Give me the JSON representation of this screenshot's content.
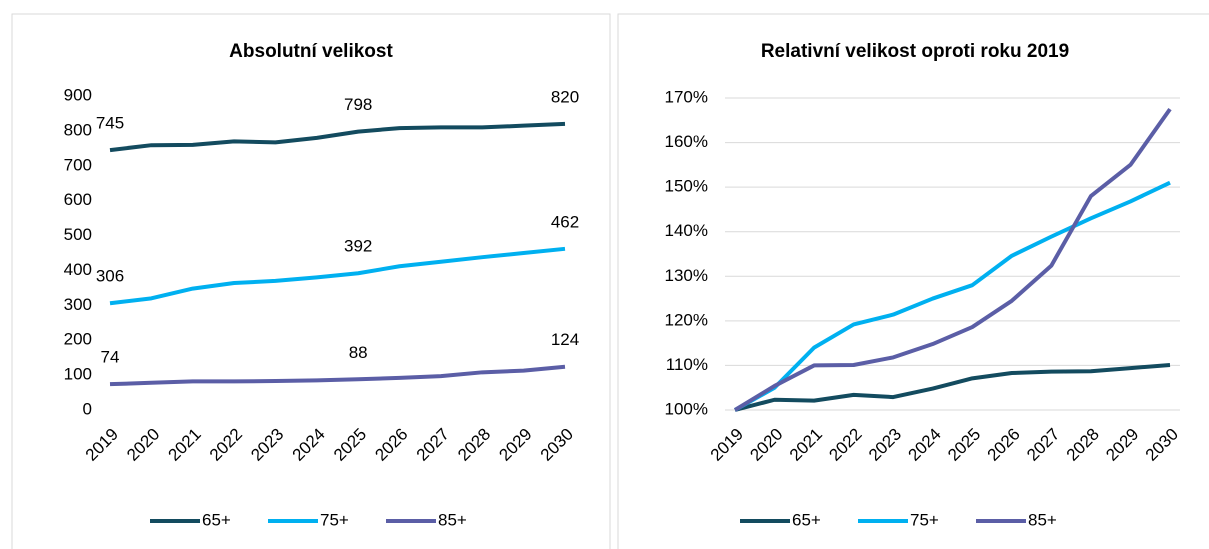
{
  "chart_data": [
    {
      "type": "line",
      "title": "Absolutní velikost",
      "categories": [
        "2019",
        "2020",
        "2021",
        "2022",
        "2023",
        "2024",
        "2025",
        "2026",
        "2027",
        "2028",
        "2029",
        "2030"
      ],
      "series": [
        {
          "name": "65+",
          "color": "#134b5f",
          "values": [
            745,
            759,
            760,
            770,
            767,
            780,
            798,
            808,
            810,
            810,
            815,
            820
          ]
        },
        {
          "name": "75+",
          "color": "#00b0f0",
          "values": [
            306,
            320,
            348,
            364,
            370,
            380,
            392,
            412,
            425,
            438,
            450,
            462
          ]
        },
        {
          "name": "85+",
          "color": "#5b5ea6",
          "values": [
            74,
            78,
            82,
            82,
            83,
            85,
            88,
            92,
            97,
            108,
            113,
            124
          ]
        }
      ],
      "labeled_points": [
        0,
        6,
        11
      ],
      "ylim": [
        0,
        900
      ],
      "yticks": [
        0,
        100,
        200,
        300,
        400,
        500,
        600,
        700,
        800,
        900
      ],
      "grid": false,
      "legend": "bottom"
    },
    {
      "type": "line",
      "title": "Relativní velikost oproti roku 2019",
      "categories": [
        "2019",
        "2020",
        "2021",
        "2022",
        "2023",
        "2024",
        "2025",
        "2026",
        "2027",
        "2028",
        "2029",
        "2030"
      ],
      "series": [
        {
          "name": "65+",
          "color": "#134b5f",
          "values": [
            100,
            102.3,
            102.1,
            103.4,
            102.9,
            104.8,
            107.1,
            108.3,
            108.6,
            108.7,
            109.4,
            110.1
          ]
        },
        {
          "name": "75+",
          "color": "#00b0f0",
          "values": [
            100,
            105,
            114,
            119.2,
            121.4,
            125,
            128,
            134.6,
            138.9,
            143,
            146.8,
            151
          ]
        },
        {
          "name": "85+",
          "color": "#5b5ea6",
          "values": [
            100,
            105.4,
            110,
            110.1,
            111.8,
            114.8,
            118.6,
            124.5,
            132.4,
            148,
            155,
            167.5
          ]
        }
      ],
      "ylim": [
        100,
        170
      ],
      "yticks": [
        {
          "value": 100,
          "label": "100%"
        },
        {
          "value": 110,
          "label": "110%"
        },
        {
          "value": 120,
          "label": "120%"
        },
        {
          "value": 130,
          "label": "130%"
        },
        {
          "value": 140,
          "label": "140%"
        },
        {
          "value": 150,
          "label": "150%"
        },
        {
          "value": 160,
          "label": "160%"
        },
        {
          "value": 170,
          "label": "170%"
        }
      ],
      "grid": true,
      "legend": "bottom"
    }
  ]
}
